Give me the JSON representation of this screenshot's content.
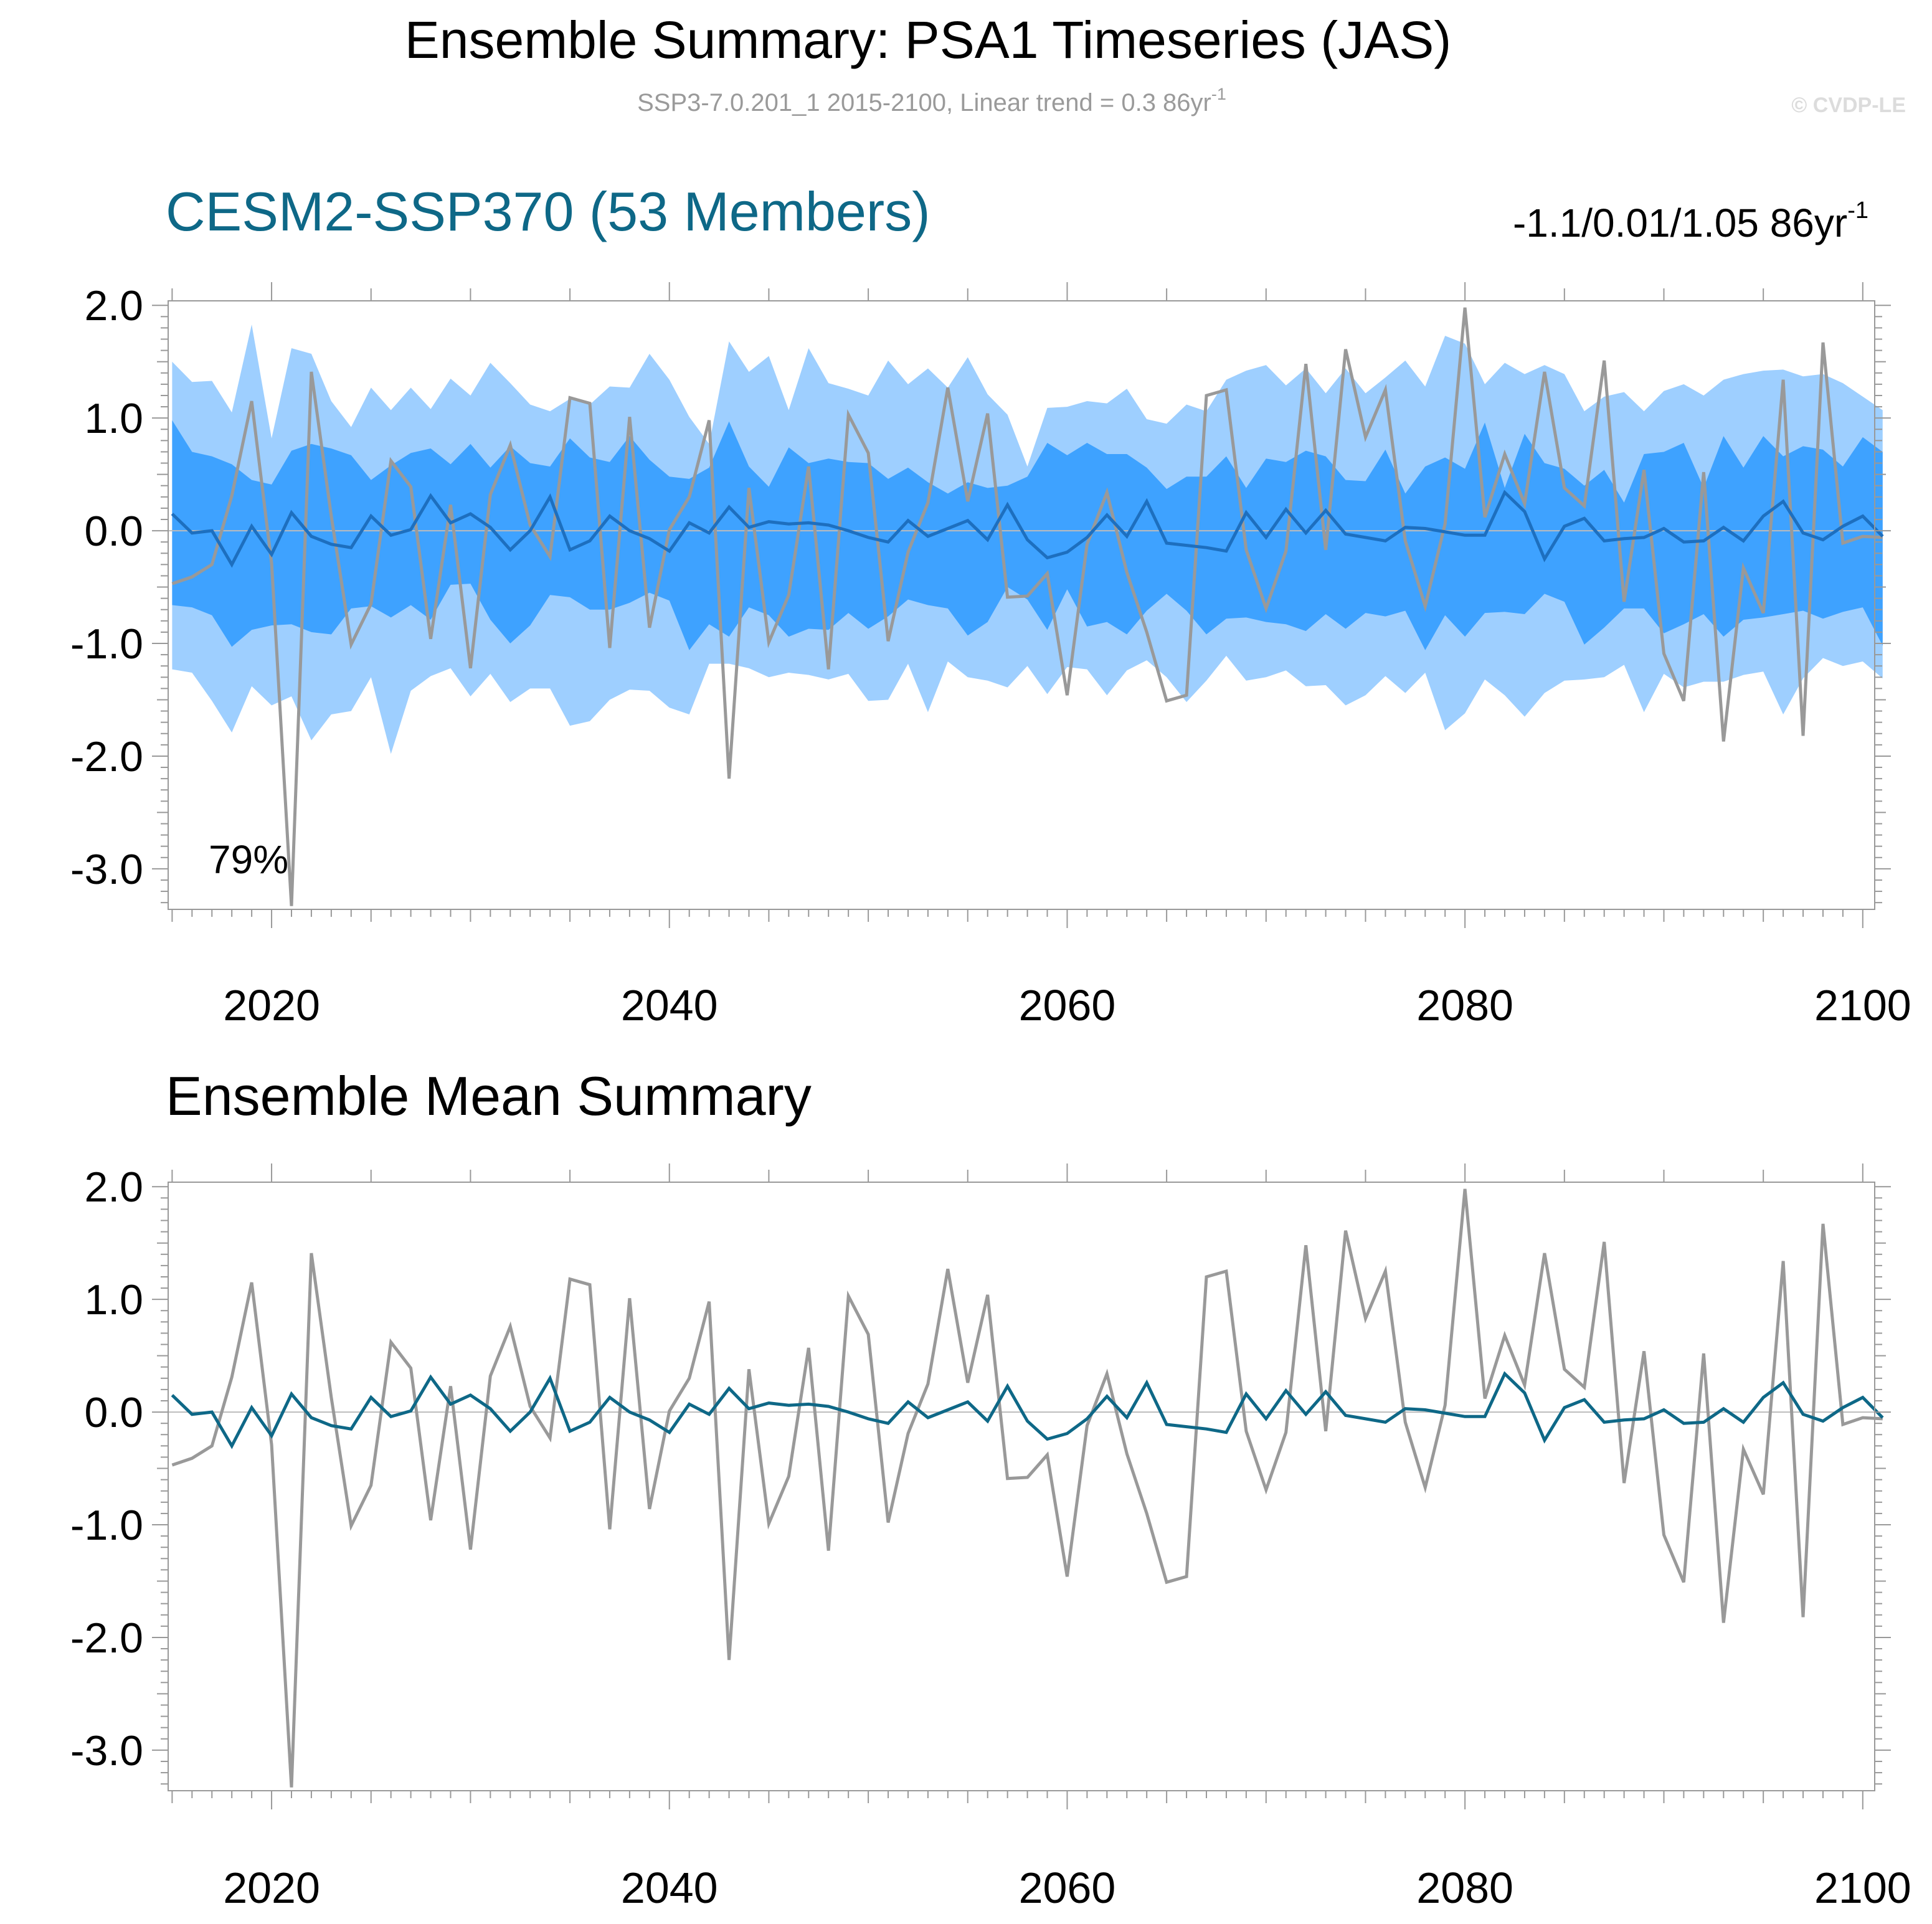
{
  "title": "Ensemble Summary: PSA1 Timeseries (JAS)",
  "subtitle": {
    "main": "SSP3-7.0.201_1 2015-2100, Linear trend = 0.3 86yr",
    "sup": "-1"
  },
  "copyright": "© CVDP-LE",
  "colors": {
    "outer_band": "#9ecfff",
    "inner_band": "#3ea2ff",
    "ensemble_line_top": "#1d6fbf",
    "ensemble_line_bottom": "#0e6887",
    "observed_line": "#999999",
    "panel1_title": "#0e6887",
    "subtitle": "#9a9a9a",
    "copyright": "#dcdcdc",
    "frame": "#999999",
    "zero_line": "#bbbbbb"
  },
  "chart_data": [
    {
      "type": "line",
      "panel": "top",
      "title": "CESM2-SSP370 (53 Members)",
      "trend_label": {
        "main": "-1.1/0.01/1.05 86yr",
        "sup": "-1"
      },
      "percent_label": "79%",
      "xlabel": "",
      "ylabel": "",
      "xlim": [
        2014.8,
        2100.6
      ],
      "ylim": [
        -3.36,
        2.04
      ],
      "x_ticks": [
        2020,
        2040,
        2060,
        2080,
        2100
      ],
      "x_tick_labels": [
        "2020",
        "2040",
        "2060",
        "2080",
        "2100"
      ],
      "y_ticks": [
        2.0,
        1.0,
        0.0,
        -1.0,
        -2.0,
        -3.0
      ],
      "y_tick_labels": [
        "2.0",
        "1.0",
        "0.0",
        "-1.0",
        "-2.0",
        "-3.0"
      ],
      "zero_line": true,
      "series": [
        {
          "name": "Ensemble 90% range (outer band)",
          "kind": "band",
          "upper": [
            1.5,
            1.32,
            1.33,
            1.05,
            1.83,
            0.82,
            1.62,
            1.57,
            1.15,
            0.92,
            1.27,
            1.07,
            1.27,
            1.08,
            1.35,
            1.2,
            1.49,
            1.31,
            1.12,
            1.06,
            1.17,
            1.12,
            1.28,
            1.27,
            1.57,
            1.34,
            1.01,
            0.77,
            1.68,
            1.41,
            1.55,
            1.07,
            1.62,
            1.31,
            1.26,
            1.2,
            1.51,
            1.3,
            1.44,
            1.27,
            1.54,
            1.21,
            1.03,
            0.57,
            1.09,
            1.1,
            1.15,
            1.13,
            1.26,
            0.99,
            0.95,
            1.12,
            1.06,
            1.34,
            1.42,
            1.47,
            1.29,
            1.44,
            1.22,
            1.44,
            1.22,
            1.36,
            1.51,
            1.28,
            1.73,
            1.66,
            1.3,
            1.49,
            1.39,
            1.47,
            1.39,
            1.06,
            1.19,
            1.23,
            1.06,
            1.24,
            1.3,
            1.2,
            1.34,
            1.39,
            1.42,
            1.43,
            1.37,
            1.39,
            1.31,
            1.19,
            1.07
          ],
          "lower": [
            -1.23,
            -1.26,
            -1.51,
            -1.79,
            -1.38,
            -1.55,
            -1.47,
            -1.86,
            -1.63,
            -1.6,
            -1.3,
            -1.98,
            -1.42,
            -1.29,
            -1.22,
            -1.47,
            -1.27,
            -1.52,
            -1.4,
            -1.4,
            -1.73,
            -1.69,
            -1.5,
            -1.41,
            -1.42,
            -1.57,
            -1.63,
            -1.18,
            -1.18,
            -1.22,
            -1.3,
            -1.26,
            -1.28,
            -1.32,
            -1.27,
            -1.51,
            -1.5,
            -1.18,
            -1.61,
            -1.16,
            -1.3,
            -1.33,
            -1.39,
            -1.2,
            -1.45,
            -1.21,
            -1.23,
            -1.46,
            -1.24,
            -1.15,
            -1.3,
            -1.52,
            -1.33,
            -1.11,
            -1.33,
            -1.3,
            -1.24,
            -1.38,
            -1.37,
            -1.55,
            -1.46,
            -1.29,
            -1.44,
            -1.26,
            -1.77,
            -1.62,
            -1.32,
            -1.46,
            -1.65,
            -1.44,
            -1.33,
            -1.32,
            -1.3,
            -1.19,
            -1.61,
            -1.27,
            -1.39,
            -1.34,
            -1.34,
            -1.28,
            -1.25,
            -1.63,
            -1.31,
            -1.13,
            -1.2,
            -1.16,
            -1.31
          ]
        },
        {
          "name": "Ensemble interquartile range (inner band)",
          "kind": "band",
          "upper": [
            0.98,
            0.7,
            0.66,
            0.59,
            0.45,
            0.41,
            0.71,
            0.77,
            0.73,
            0.67,
            0.45,
            0.58,
            0.69,
            0.73,
            0.59,
            0.77,
            0.56,
            0.75,
            0.6,
            0.57,
            0.82,
            0.65,
            0.61,
            0.84,
            0.63,
            0.48,
            0.46,
            0.56,
            0.97,
            0.57,
            0.39,
            0.74,
            0.6,
            0.64,
            0.61,
            0.6,
            0.46,
            0.56,
            0.43,
            0.33,
            0.43,
            0.38,
            0.4,
            0.48,
            0.78,
            0.67,
            0.78,
            0.68,
            0.68,
            0.56,
            0.37,
            0.48,
            0.48,
            0.66,
            0.38,
            0.64,
            0.61,
            0.71,
            0.66,
            0.45,
            0.44,
            0.72,
            0.33,
            0.57,
            0.65,
            0.55,
            0.96,
            0.38,
            0.86,
            0.6,
            0.55,
            0.4,
            0.54,
            0.25,
            0.68,
            0.7,
            0.78,
            0.38,
            0.84,
            0.56,
            0.84,
            0.66,
            0.75,
            0.72,
            0.57,
            0.83,
            0.7
          ],
          "lower": [
            -0.66,
            -0.68,
            -0.75,
            -1.03,
            -0.88,
            -0.84,
            -0.83,
            -0.9,
            -0.92,
            -0.69,
            -0.67,
            -0.77,
            -0.66,
            -0.79,
            -0.48,
            -0.47,
            -0.79,
            -1.0,
            -0.84,
            -0.57,
            -0.59,
            -0.7,
            -0.7,
            -0.64,
            -0.55,
            -0.62,
            -1.06,
            -0.83,
            -0.94,
            -0.68,
            -0.75,
            -0.94,
            -0.87,
            -0.88,
            -0.73,
            -0.87,
            -0.76,
            -0.61,
            -0.66,
            -0.69,
            -0.93,
            -0.81,
            -0.5,
            -0.61,
            -0.88,
            -0.52,
            -0.85,
            -0.81,
            -0.92,
            -0.71,
            -0.56,
            -0.71,
            -0.92,
            -0.78,
            -0.77,
            -0.81,
            -0.83,
            -0.89,
            -0.74,
            -0.87,
            -0.73,
            -0.76,
            -0.71,
            -1.06,
            -0.75,
            -0.94,
            -0.73,
            -0.72,
            -0.74,
            -0.56,
            -0.63,
            -1.01,
            -0.86,
            -0.69,
            -0.69,
            -0.91,
            -0.83,
            -0.74,
            -0.94,
            -0.79,
            -0.77,
            -0.74,
            -0.71,
            -0.78,
            -0.72,
            -0.68,
            -1.02
          ]
        },
        {
          "name": "Ensemble mean",
          "kind": "line",
          "color": "#1d6fbf",
          "x_start": 2015,
          "values": [
            0.15,
            -0.02,
            0.0,
            -0.3,
            0.04,
            -0.21,
            0.16,
            -0.05,
            -0.12,
            -0.15,
            0.13,
            -0.04,
            0.01,
            0.31,
            0.07,
            0.15,
            0.03,
            -0.17,
            0.0,
            0.3,
            -0.17,
            -0.09,
            0.13,
            0.0,
            -0.07,
            -0.18,
            0.07,
            -0.02,
            0.21,
            0.03,
            0.08,
            0.06,
            0.07,
            0.05,
            0.0,
            -0.06,
            -0.1,
            0.09,
            -0.05,
            0.02,
            0.09,
            -0.08,
            0.23,
            -0.08,
            -0.24,
            -0.19,
            -0.06,
            0.14,
            -0.05,
            0.26,
            -0.11,
            -0.13,
            -0.15,
            -0.18,
            0.16,
            -0.06,
            0.19,
            -0.02,
            0.18,
            -0.03,
            -0.06,
            -0.09,
            0.03,
            0.02,
            -0.01,
            -0.04,
            -0.04,
            0.34,
            0.17,
            -0.25,
            0.04,
            0.11,
            -0.09,
            -0.07,
            -0.06,
            0.02,
            -0.1,
            -0.09,
            0.03,
            -0.09,
            0.13,
            0.26,
            -0.02,
            -0.08,
            0.04,
            0.13,
            -0.05
          ]
        },
        {
          "name": "Observed (SSP3-7.0.201_1)",
          "kind": "line",
          "color": "#999999",
          "x_start": 2015,
          "values": [
            -0.47,
            -0.41,
            -0.3,
            0.31,
            1.15,
            -0.29,
            -3.33,
            1.41,
            0.13,
            -1.01,
            -0.65,
            0.62,
            0.39,
            -0.96,
            0.23,
            -1.22,
            0.32,
            0.76,
            0.05,
            -0.23,
            1.18,
            1.13,
            -1.04,
            1.01,
            -0.86,
            0.01,
            0.3,
            0.98,
            -2.2,
            0.38,
            -0.99,
            -0.57,
            0.57,
            -1.23,
            1.03,
            0.69,
            -0.98,
            -0.19,
            0.25,
            1.27,
            0.26,
            1.04,
            -0.59,
            -0.58,
            -0.38,
            -1.46,
            -0.12,
            0.34,
            -0.37,
            -0.9,
            -1.51,
            -1.46,
            1.2,
            1.25,
            -0.17,
            -0.69,
            -0.18,
            1.48,
            -0.17,
            1.61,
            0.83,
            1.25,
            -0.09,
            -0.67,
            0.06,
            1.98,
            0.12,
            0.68,
            0.24,
            1.41,
            0.38,
            0.22,
            1.51,
            -0.63,
            0.54,
            -1.09,
            -1.51,
            0.52,
            -1.87,
            -0.33,
            -0.73,
            1.34,
            -1.82,
            1.67,
            -0.11,
            -0.05,
            -0.06
          ]
        }
      ]
    },
    {
      "type": "line",
      "panel": "bottom",
      "title": "Ensemble Mean Summary",
      "xlabel": "",
      "ylabel": "",
      "xlim": [
        2014.8,
        2100.6
      ],
      "ylim": [
        -3.36,
        2.04
      ],
      "x_ticks": [
        2020,
        2040,
        2060,
        2080,
        2100
      ],
      "x_tick_labels": [
        "2020",
        "2040",
        "2060",
        "2080",
        "2100"
      ],
      "y_ticks": [
        2.0,
        1.0,
        0.0,
        -1.0,
        -2.0,
        -3.0
      ],
      "y_tick_labels": [
        "2.0",
        "1.0",
        "0.0",
        "-1.0",
        "-2.0",
        "-3.0"
      ],
      "zero_line": true,
      "series": [
        {
          "name": "Observed (SSP3-7.0.201_1)",
          "kind": "line",
          "color": "#999999",
          "x_start": 2015,
          "values": [
            -0.47,
            -0.41,
            -0.3,
            0.31,
            1.15,
            -0.29,
            -3.33,
            1.41,
            0.13,
            -1.01,
            -0.65,
            0.62,
            0.39,
            -0.96,
            0.23,
            -1.22,
            0.32,
            0.76,
            0.05,
            -0.23,
            1.18,
            1.13,
            -1.04,
            1.01,
            -0.86,
            0.01,
            0.3,
            0.98,
            -2.2,
            0.38,
            -0.99,
            -0.57,
            0.57,
            -1.23,
            1.03,
            0.69,
            -0.98,
            -0.19,
            0.25,
            1.27,
            0.26,
            1.04,
            -0.59,
            -0.58,
            -0.38,
            -1.46,
            -0.12,
            0.34,
            -0.37,
            -0.9,
            -1.51,
            -1.46,
            1.2,
            1.25,
            -0.17,
            -0.69,
            -0.18,
            1.48,
            -0.17,
            1.61,
            0.83,
            1.25,
            -0.09,
            -0.67,
            0.06,
            1.98,
            0.12,
            0.68,
            0.24,
            1.41,
            0.38,
            0.22,
            1.51,
            -0.63,
            0.54,
            -1.09,
            -1.51,
            0.52,
            -1.87,
            -0.33,
            -0.73,
            1.34,
            -1.82,
            1.67,
            -0.11,
            -0.05,
            -0.06
          ]
        },
        {
          "name": "Ensemble mean",
          "kind": "line",
          "color": "#0e6887",
          "x_start": 2015,
          "values": [
            0.15,
            -0.02,
            0.0,
            -0.3,
            0.04,
            -0.21,
            0.16,
            -0.05,
            -0.12,
            -0.15,
            0.13,
            -0.04,
            0.01,
            0.31,
            0.07,
            0.15,
            0.03,
            -0.17,
            0.0,
            0.3,
            -0.17,
            -0.09,
            0.13,
            0.0,
            -0.07,
            -0.18,
            0.07,
            -0.02,
            0.21,
            0.03,
            0.08,
            0.06,
            0.07,
            0.05,
            0.0,
            -0.06,
            -0.1,
            0.09,
            -0.05,
            0.02,
            0.09,
            -0.08,
            0.23,
            -0.08,
            -0.24,
            -0.19,
            -0.06,
            0.14,
            -0.05,
            0.26,
            -0.11,
            -0.13,
            -0.15,
            -0.18,
            0.16,
            -0.06,
            0.19,
            -0.02,
            0.18,
            -0.03,
            -0.06,
            -0.09,
            0.03,
            0.02,
            -0.01,
            -0.04,
            -0.04,
            0.34,
            0.17,
            -0.25,
            0.04,
            0.11,
            -0.09,
            -0.07,
            -0.06,
            0.02,
            -0.1,
            -0.09,
            0.03,
            -0.09,
            0.13,
            0.26,
            -0.02,
            -0.08,
            0.04,
            0.13,
            -0.05
          ]
        }
      ]
    }
  ]
}
